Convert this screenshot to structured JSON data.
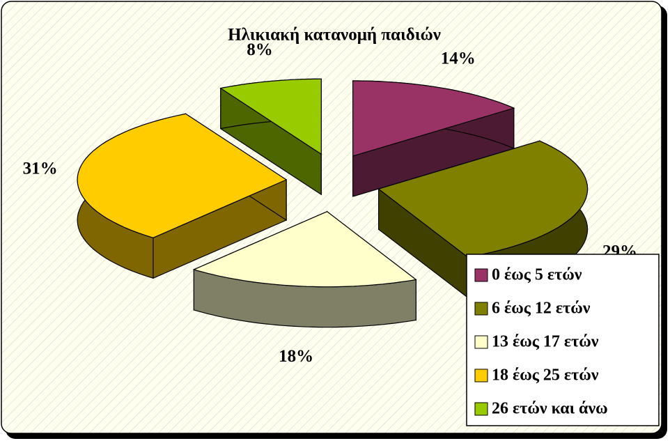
{
  "chart_data": {
    "type": "pie3d",
    "title": "Ηλικιακή κατανομή παιδιών",
    "categories": [
      "0 έως 5 ετών",
      "6 έως 12 ετών",
      "13 έως 17 ετών",
      "18 έως 25 ετών",
      "26 ετών και άνω"
    ],
    "values": [
      14,
      29,
      18,
      31,
      8
    ],
    "value_labels": [
      "14%",
      "29%",
      "18%",
      "31%",
      "8%"
    ],
    "colors": [
      "#993366",
      "#808000",
      "#ffffcc",
      "#ffcc00",
      "#99cc00"
    ],
    "legend": "bottom-right"
  }
}
